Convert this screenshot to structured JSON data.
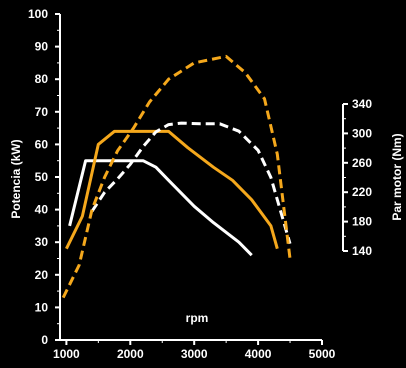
{
  "chart_data": {
    "type": "line",
    "title": "",
    "xlabel": "rpm",
    "ylabel_left": "Potencia (kW)",
    "ylabel_right": "Par motor (Nm)",
    "xlim": [
      900,
      5000
    ],
    "ylim_left": [
      0,
      100
    ],
    "ylim_right": [
      140,
      340
    ],
    "x_ticks": [
      "1000",
      "2000",
      "3000",
      "4000",
      "5000"
    ],
    "y_left_ticks": [
      "0",
      "10",
      "20",
      "30",
      "40",
      "50",
      "60",
      "70",
      "80",
      "90",
      "100"
    ],
    "y_right_ticks": [
      "140",
      "180",
      "220",
      "260",
      "300",
      "340"
    ],
    "grid": false,
    "legend": "none",
    "background": "#000000",
    "series": [
      {
        "axis": "left",
        "style": "solid",
        "color": "#ffffff",
        "points": [
          [
            1050,
            35
          ],
          [
            1300,
            55
          ],
          [
            2200,
            55
          ],
          [
            2400,
            53
          ],
          [
            2600,
            49
          ],
          [
            3000,
            41
          ],
          [
            3300,
            36
          ],
          [
            3700,
            30
          ],
          [
            3900,
            26
          ]
        ]
      },
      {
        "axis": "left",
        "style": "solid",
        "color": "#f5a81c",
        "points": [
          [
            1000,
            28
          ],
          [
            1250,
            38
          ],
          [
            1500,
            60
          ],
          [
            1750,
            64
          ],
          [
            2600,
            64
          ],
          [
            2900,
            59
          ],
          [
            3300,
            53
          ],
          [
            3600,
            49
          ],
          [
            3900,
            43
          ],
          [
            4200,
            35
          ],
          [
            4300,
            28
          ]
        ]
      },
      {
        "axis": "right",
        "style": "dashed",
        "color": "#ffffff",
        "points": [
          [
            1400,
            194
          ],
          [
            1600,
            220
          ],
          [
            1800,
            238
          ],
          [
            2000,
            258
          ],
          [
            2200,
            282
          ],
          [
            2400,
            302
          ],
          [
            2600,
            312
          ],
          [
            2800,
            314
          ],
          [
            3100,
            313
          ],
          [
            3400,
            313
          ],
          [
            3700,
            303
          ],
          [
            4000,
            277
          ],
          [
            4200,
            240
          ],
          [
            4500,
            150
          ]
        ]
      },
      {
        "axis": "left",
        "style": "dashed",
        "color": "#f5a81c",
        "points": [
          [
            950,
            13
          ],
          [
            1200,
            23
          ],
          [
            1400,
            40
          ],
          [
            1600,
            50
          ],
          [
            1800,
            58
          ],
          [
            2050,
            65
          ],
          [
            2300,
            73
          ],
          [
            2600,
            80
          ],
          [
            3000,
            85
          ],
          [
            3500,
            87
          ],
          [
            3800,
            82
          ],
          [
            4100,
            74
          ],
          [
            4300,
            57
          ],
          [
            4500,
            25
          ]
        ]
      }
    ]
  }
}
